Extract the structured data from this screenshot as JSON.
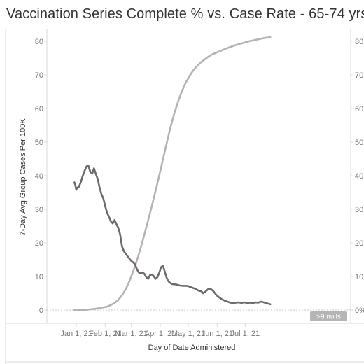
{
  "title": "Vaccination Series Complete % vs. Case Rate  - 65-74 yrs",
  "chart_data": {
    "type": "line",
    "title": "Vaccination Series Complete % vs. Case Rate  - 65-74 yrs",
    "xlabel": "Day of Date Administered",
    "ylabel": "7-Day Avg Group Cases Per 100K",
    "x_ticks": [
      "Jan 1, 21",
      "Feb 1, 21",
      "Mar 1, 21",
      "Apr 1, 21",
      "May 1, 21",
      "Jun 1, 21",
      "Jul 1, 21"
    ],
    "y_ticks": [
      "0",
      "10",
      "20",
      "30",
      "40",
      "50",
      "60",
      "70",
      "80"
    ],
    "y2_ticks": [
      "0%",
      "10",
      "20",
      "30",
      "40",
      "50",
      "60",
      "70",
      "80"
    ],
    "ylim": [
      0,
      80
    ],
    "y2lim": [
      0,
      80
    ],
    "grid": false,
    "nulls_badge": ">9 nulls",
    "colors": {
      "case_rate": "#6e6a6b",
      "vaccination": "#b7b1b1",
      "baseline": "#c8c8c8",
      "axis": "#d9d9d9",
      "tick_text": "#777777",
      "badge_bg": "#b5b5b5",
      "badge_text": "#ffffff"
    },
    "series": [
      {
        "axis": "left",
        "values": [
          [
            "2020-12-30",
            38
          ],
          [
            "2020-12-31",
            37.2
          ],
          [
            "2021-01-01",
            35.8
          ],
          [
            "2021-01-02",
            36.4
          ],
          [
            "2021-01-04",
            36.8
          ],
          [
            "2021-01-06",
            38.2
          ],
          [
            "2021-01-08",
            40.0
          ],
          [
            "2021-01-10",
            41.5
          ],
          [
            "2021-01-12",
            42.8
          ],
          [
            "2021-01-14",
            43.0
          ],
          [
            "2021-01-16",
            41.2
          ],
          [
            "2021-01-18",
            40.6
          ],
          [
            "2021-01-20",
            42.2
          ],
          [
            "2021-01-22",
            40.5
          ],
          [
            "2021-01-24",
            39.0
          ],
          [
            "2021-01-26",
            36.5
          ],
          [
            "2021-01-28",
            34.5
          ],
          [
            "2021-01-30",
            33.2
          ],
          [
            "2021-02-01",
            31.0
          ],
          [
            "2021-02-03",
            29.0
          ],
          [
            "2021-02-05",
            27.8
          ],
          [
            "2021-02-07",
            26.5
          ],
          [
            "2021-02-09",
            25.8
          ],
          [
            "2021-02-11",
            26.8
          ],
          [
            "2021-02-13",
            25.6
          ],
          [
            "2021-02-15",
            24.5
          ],
          [
            "2021-02-17",
            22.5
          ],
          [
            "2021-02-19",
            19.0
          ],
          [
            "2021-02-21",
            17.5
          ],
          [
            "2021-02-23",
            16.8
          ],
          [
            "2021-02-25",
            16.0
          ],
          [
            "2021-02-27",
            15.3
          ],
          [
            "2021-03-01",
            14.6
          ],
          [
            "2021-03-03",
            14.2
          ],
          [
            "2021-03-05",
            13.6
          ],
          [
            "2021-03-07",
            12.1
          ],
          [
            "2021-03-09",
            11.2
          ],
          [
            "2021-03-11",
            10.9
          ],
          [
            "2021-03-13",
            11.2
          ],
          [
            "2021-03-15",
            10.8
          ],
          [
            "2021-03-17",
            9.8
          ],
          [
            "2021-03-19",
            9.3
          ],
          [
            "2021-03-21",
            10.4
          ],
          [
            "2021-03-23",
            10.6
          ],
          [
            "2021-03-25",
            10.1
          ],
          [
            "2021-03-27",
            9.3
          ],
          [
            "2021-03-29",
            9.8
          ],
          [
            "2021-03-31",
            11.2
          ],
          [
            "2021-04-02",
            12.8
          ],
          [
            "2021-04-04",
            13.2
          ],
          [
            "2021-04-06",
            11.2
          ],
          [
            "2021-04-08",
            9.5
          ],
          [
            "2021-04-10",
            8.5
          ],
          [
            "2021-04-12",
            8.0
          ],
          [
            "2021-04-14",
            7.7
          ],
          [
            "2021-04-18",
            7.6
          ],
          [
            "2021-04-22",
            7.3
          ],
          [
            "2021-04-26",
            7.2
          ],
          [
            "2021-04-30",
            7.2
          ],
          [
            "2021-05-04",
            6.8
          ],
          [
            "2021-05-08",
            6.4
          ],
          [
            "2021-05-12",
            5.8
          ],
          [
            "2021-05-15",
            5.6
          ],
          [
            "2021-05-17",
            5.0
          ],
          [
            "2021-05-19",
            5.4
          ],
          [
            "2021-05-21",
            5.9
          ],
          [
            "2021-05-23",
            6.4
          ],
          [
            "2021-05-25",
            6.3
          ],
          [
            "2021-05-28",
            5.6
          ],
          [
            "2021-05-31",
            4.5
          ],
          [
            "2021-06-03",
            3.8
          ],
          [
            "2021-06-06",
            3.2
          ],
          [
            "2021-06-09",
            2.8
          ],
          [
            "2021-06-12",
            2.5
          ],
          [
            "2021-06-15",
            2.2
          ],
          [
            "2021-06-18",
            2.0
          ],
          [
            "2021-06-21",
            2.2
          ],
          [
            "2021-06-24",
            2.3
          ],
          [
            "2021-06-27",
            2.1
          ],
          [
            "2021-06-30",
            2.3
          ],
          [
            "2021-07-03",
            2.1
          ],
          [
            "2021-07-06",
            2.2
          ],
          [
            "2021-07-09",
            2.0
          ],
          [
            "2021-07-12",
            2.3
          ],
          [
            "2021-07-15",
            2.2
          ],
          [
            "2021-07-18",
            2.5
          ],
          [
            "2021-07-21",
            2.3
          ],
          [
            "2021-07-24",
            2.0
          ],
          [
            "2021-07-27",
            1.8
          ],
          [
            "2021-07-28",
            1.7
          ]
        ]
      },
      {
        "axis": "right",
        "values": [
          [
            "2020-12-30",
            0
          ],
          [
            "2021-01-10",
            0
          ],
          [
            "2021-01-16",
            0.2
          ],
          [
            "2021-01-22",
            0.4
          ],
          [
            "2021-01-28",
            0.7
          ],
          [
            "2021-02-03",
            1.0
          ],
          [
            "2021-02-07",
            1.5
          ],
          [
            "2021-02-11",
            2.1
          ],
          [
            "2021-02-15",
            3.0
          ],
          [
            "2021-02-19",
            4.4
          ],
          [
            "2021-02-23",
            6.2
          ],
          [
            "2021-02-27",
            8.6
          ],
          [
            "2021-03-03",
            11.5
          ],
          [
            "2021-03-07",
            14.8
          ],
          [
            "2021-03-11",
            18.5
          ],
          [
            "2021-03-15",
            22.5
          ],
          [
            "2021-03-19",
            26.8
          ],
          [
            "2021-03-23",
            31.0
          ],
          [
            "2021-03-27",
            35.5
          ],
          [
            "2021-03-31",
            40.2
          ],
          [
            "2021-04-04",
            45.0
          ],
          [
            "2021-04-08",
            49.8
          ],
          [
            "2021-04-12",
            54.5
          ],
          [
            "2021-04-16",
            58.5
          ],
          [
            "2021-04-20",
            62.0
          ],
          [
            "2021-04-24",
            65.0
          ],
          [
            "2021-04-28",
            67.5
          ],
          [
            "2021-05-02",
            69.5
          ],
          [
            "2021-05-06",
            71.2
          ],
          [
            "2021-05-10",
            72.5
          ],
          [
            "2021-05-14",
            73.6
          ],
          [
            "2021-05-18",
            74.5
          ],
          [
            "2021-05-22",
            75.3
          ],
          [
            "2021-05-26",
            76.0
          ],
          [
            "2021-05-31",
            76.6
          ],
          [
            "2021-06-05",
            77.2
          ],
          [
            "2021-06-10",
            77.8
          ],
          [
            "2021-06-15",
            78.3
          ],
          [
            "2021-06-20",
            78.8
          ],
          [
            "2021-06-25",
            79.2
          ],
          [
            "2021-06-30",
            79.6
          ],
          [
            "2021-07-05",
            80.0
          ],
          [
            "2021-07-10",
            80.3
          ],
          [
            "2021-07-15",
            80.6
          ],
          [
            "2021-07-20",
            80.9
          ],
          [
            "2021-07-25",
            81.1
          ],
          [
            "2021-07-28",
            81.2
          ]
        ]
      }
    ]
  }
}
